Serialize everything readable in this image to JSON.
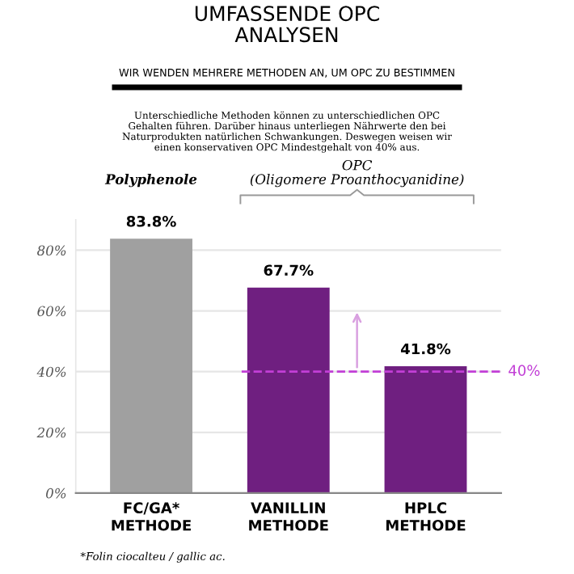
{
  "chart_data": {
    "type": "bar",
    "title": "UMFASSENDE OPC\nANALYSEN",
    "subtitle": "WIR WENDEN MEHRERE METHODEN AN, UM OPC ZU BESTIMMEN",
    "categories": [
      "FC/GA*\nMETHODE",
      "VANILLIN\nMETHODE",
      "HPLC\nMETHODE"
    ],
    "values": [
      83.8,
      67.7,
      41.8
    ],
    "colors": [
      "#a0a0a0",
      "#6f1f80",
      "#6f1f80"
    ],
    "value_labels": [
      "83.8%",
      "67.7%",
      "41.8%"
    ],
    "ylim": [
      0,
      90
    ],
    "yticks": [
      {
        "value": 0,
        "label": "0%"
      },
      {
        "value": 20,
        "label": "20%"
      },
      {
        "value": 40,
        "label": "40%"
      },
      {
        "value": 60,
        "label": "60%"
      },
      {
        "value": 80,
        "label": "80%"
      }
    ],
    "grid": "y",
    "ref_lines": [
      {
        "axis": "y",
        "value": 40,
        "label": "40%",
        "color": "#c23fd6",
        "line_style": "dashed"
      }
    ],
    "annotations": [
      "Unterschiedliche Methoden können zu unterschiedlichen OPC\nGehalten führen. Darüber hinaus unterliegen Nährwerte den bei\nNaturprodukten natürlichen Schwankungen. Deswegen weisen wir\neinen konservativen OPC Mindestgehalt von 40% aus.",
      "Polyphenole",
      "OPC\n(Oligomere Proanthocyanidine)",
      "*Folin ciocalteu / gallic ac."
    ]
  }
}
